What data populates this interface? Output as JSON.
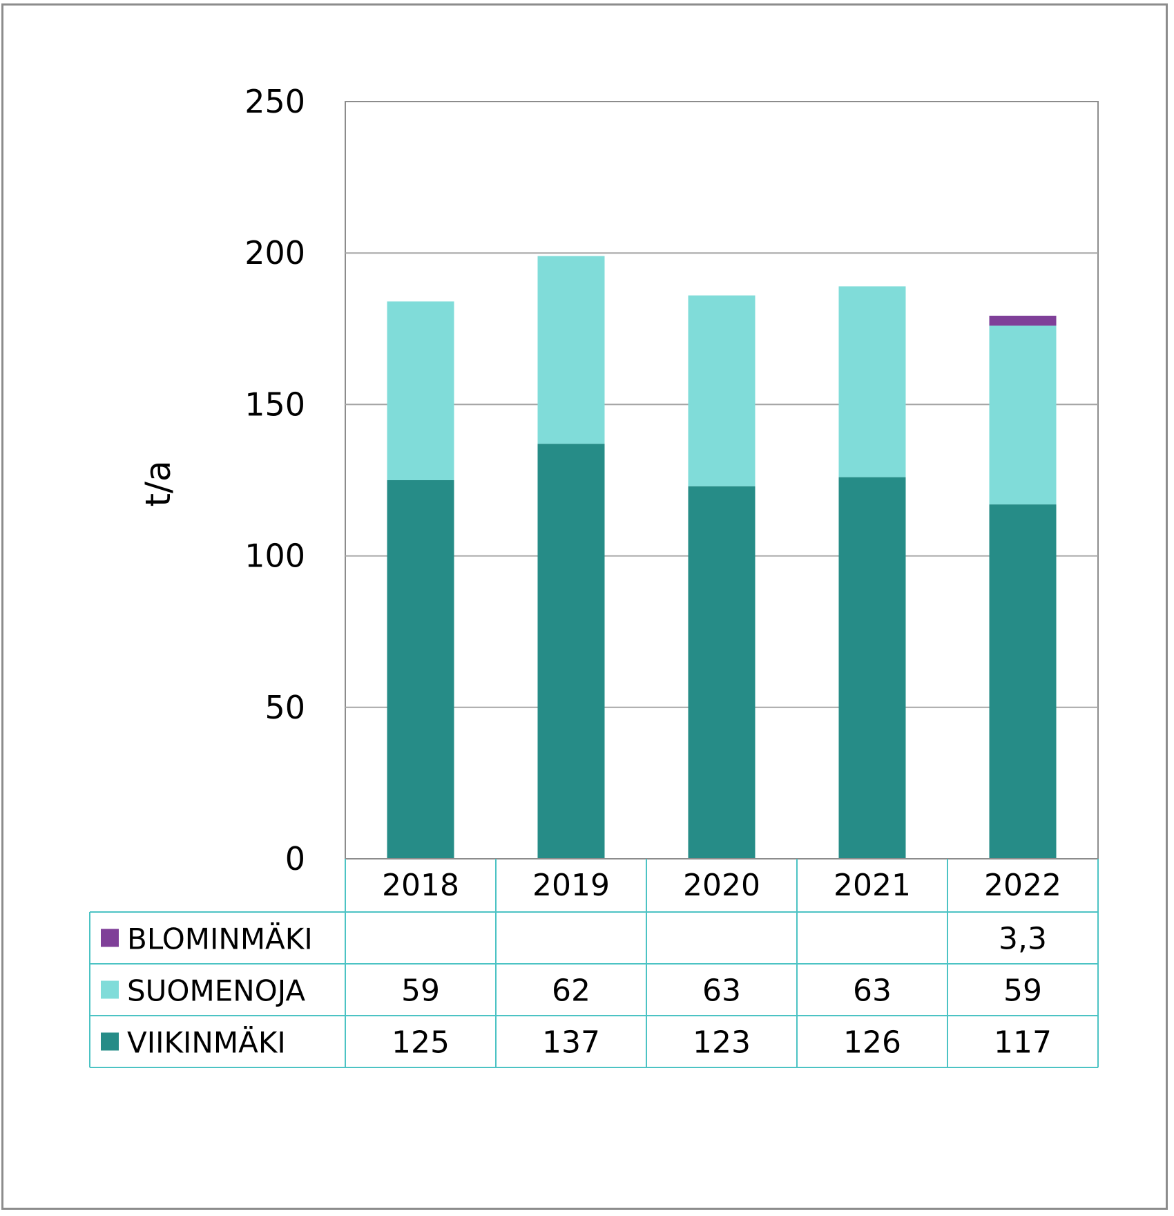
{
  "chart_data": {
    "type": "bar",
    "stacked": true,
    "categories": [
      "2018",
      "2019",
      "2020",
      "2021",
      "2022"
    ],
    "series": [
      {
        "name": "VIIKINMÄKI",
        "values": [
          125,
          137,
          123,
          126,
          117
        ],
        "labels": [
          "125",
          "137",
          "123",
          "126",
          "117"
        ],
        "color": "#268c87"
      },
      {
        "name": "SUOMENOJA",
        "values": [
          59,
          62,
          63,
          63,
          59
        ],
        "labels": [
          "59",
          "62",
          "63",
          "63",
          "59"
        ],
        "color": "#80dcd9"
      },
      {
        "name": "BLOMINMÄKI",
        "values": [
          null,
          null,
          null,
          null,
          3.3
        ],
        "labels": [
          "",
          "",
          "",
          "",
          "3,3"
        ],
        "color": "#7f3f98"
      }
    ],
    "ylabel": "t/a",
    "ylim": [
      0,
      250
    ],
    "yticks": [
      0,
      50,
      100,
      150,
      200,
      250
    ],
    "grid": true,
    "legend": "data-table"
  }
}
